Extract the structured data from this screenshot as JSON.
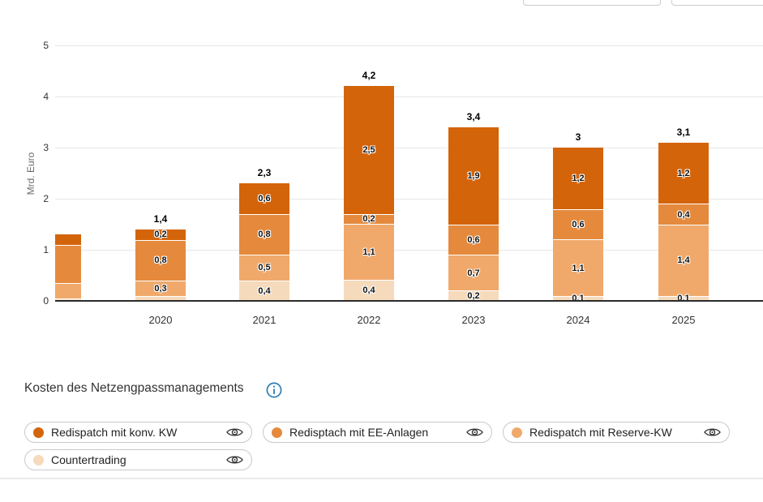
{
  "section": {
    "title": "Kosten des Netzengpassmanagements"
  },
  "icons": {
    "info": "info-icon",
    "visibility": "eye-icon"
  },
  "colors": {
    "redispatch_konv": "#d4640a",
    "redispatch_ee": "#e58a3d",
    "redispatch_reserve": "#f0a96b",
    "countertrading": "#f5dabc",
    "info_icon": "#2d7db3",
    "baseline": "#2b2b2b",
    "gridline": "#e8e8e8"
  },
  "chart_data": {
    "type": "bar",
    "stacked": true,
    "title": "Kosten des Netzengpassmanagements",
    "ylabel": "Mrd. Euro",
    "ylim": [
      0,
      5
    ],
    "yticks": [
      "0",
      "1",
      "2",
      "3",
      "4",
      "5"
    ],
    "grid": true,
    "legend_position": "bottom",
    "series": [
      {
        "name": "Countertrading",
        "color": "#f5dabc"
      },
      {
        "name": "Redispatch mit Reserve-KW",
        "color": "#f0a96b"
      },
      {
        "name": "Redisptach mit EE-Anlagen",
        "color": "#e58a3d"
      },
      {
        "name": "Redispatch mit konv. KW",
        "color": "#d4640a"
      }
    ],
    "categories": [
      "",
      "2020",
      "2021",
      "2022",
      "2023",
      "2024",
      "2025"
    ],
    "bars": [
      {
        "category": "",
        "partial": true,
        "total_label": "",
        "values": [
          0.05,
          0.3,
          0.75,
          0.2
        ],
        "labels": [
          "",
          "",
          "",
          ""
        ]
      },
      {
        "category": "2020",
        "partial": false,
        "total_label": "1,4",
        "values": [
          0.1,
          0.3,
          0.8,
          0.2
        ],
        "labels": [
          "",
          "0,3",
          "0,8",
          "0,2"
        ]
      },
      {
        "category": "2021",
        "partial": false,
        "total_label": "2,3",
        "values": [
          0.4,
          0.5,
          0.8,
          0.6
        ],
        "labels": [
          "0,4",
          "0,5",
          "0,8",
          "0,6"
        ]
      },
      {
        "category": "2022",
        "partial": false,
        "total_label": "4,2",
        "values": [
          0.4,
          1.1,
          0.2,
          2.5
        ],
        "labels": [
          "0,4",
          "1,1",
          "0,2",
          "2,5"
        ]
      },
      {
        "category": "2023",
        "partial": false,
        "total_label": "3,4",
        "values": [
          0.2,
          0.7,
          0.6,
          1.9
        ],
        "labels": [
          "0,2",
          "0,7",
          "0,6",
          "1,9"
        ]
      },
      {
        "category": "2024",
        "partial": false,
        "total_label": "3",
        "values": [
          0.1,
          1.1,
          0.6,
          1.2
        ],
        "labels": [
          "0,1",
          "1,1",
          "0,6",
          "1,2"
        ]
      },
      {
        "category": "2025",
        "partial": false,
        "total_label": "3,1",
        "values": [
          0.1,
          1.4,
          0.4,
          1.2
        ],
        "labels": [
          "0,1",
          "1,4",
          "0,4",
          "1,2"
        ]
      }
    ]
  },
  "legend": {
    "items": [
      {
        "label": "Redispatch mit konv. KW",
        "color": "#d4640a"
      },
      {
        "label": "Redisptach mit EE-Anlagen",
        "color": "#e58a3d"
      },
      {
        "label": "Redispatch mit Reserve-KW",
        "color": "#f0a96b"
      },
      {
        "label": "Countertrading",
        "color": "#f5dabc"
      }
    ]
  }
}
